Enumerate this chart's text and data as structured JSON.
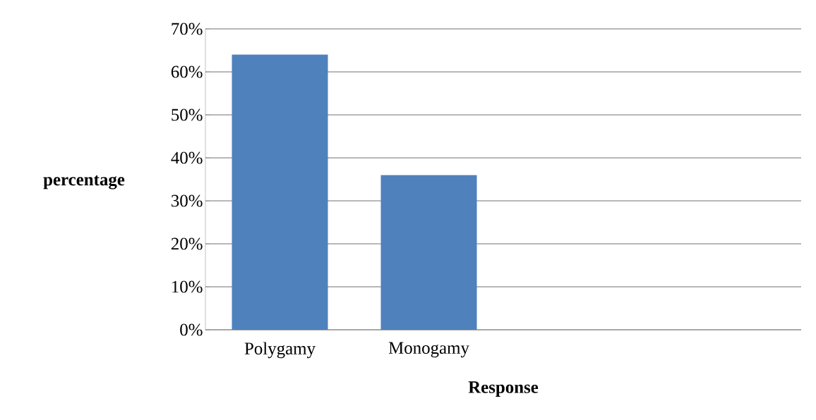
{
  "chart_data": {
    "type": "bar",
    "xlabel": "Response",
    "ylabel": "percentage",
    "categories": [
      "Polygamy",
      "Monogamy",
      null,
      null
    ],
    "values": [
      64,
      36,
      null,
      null
    ],
    "color": "#4f81bd",
    "ylim": [
      0,
      70
    ],
    "yticks": [
      {
        "value": 0,
        "label": "0%"
      },
      {
        "value": 10,
        "label": "10%"
      },
      {
        "value": 20,
        "label": "20%"
      },
      {
        "value": 30,
        "label": "30%"
      },
      {
        "value": 40,
        "label": "40%"
      },
      {
        "value": 50,
        "label": "50%"
      },
      {
        "value": 60,
        "label": "60%"
      },
      {
        "value": 70,
        "label": "70%"
      }
    ],
    "grid": "y"
  }
}
